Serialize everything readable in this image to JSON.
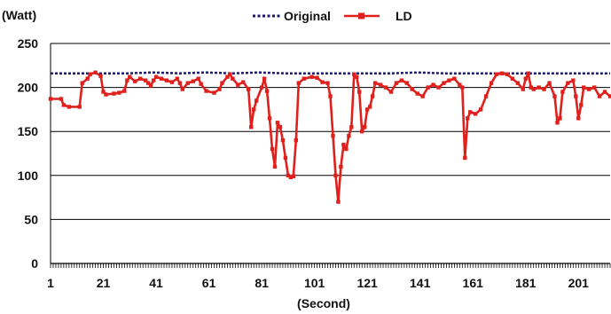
{
  "chart_data": {
    "type": "line",
    "ylabel": "(Watt)",
    "xlabel": "(Second)",
    "ylim": [
      0,
      250
    ],
    "yticks": [
      0,
      50,
      100,
      150,
      200,
      250
    ],
    "xticks": [
      1,
      21,
      41,
      61,
      81,
      101,
      121,
      141,
      161,
      181,
      201
    ],
    "xlim": [
      1,
      213
    ],
    "grid": "horizontal",
    "legend": "top-center",
    "series": [
      {
        "name": "Original",
        "color": "#1a1a6e",
        "style": "dotted-with-markers",
        "points": [
          [
            1,
            216
          ],
          [
            10,
            216
          ],
          [
            20,
            216
          ],
          [
            30,
            216
          ],
          [
            40,
            217
          ],
          [
            50,
            216
          ],
          [
            60,
            217
          ],
          [
            70,
            216
          ],
          [
            80,
            217
          ],
          [
            90,
            216
          ],
          [
            100,
            216
          ],
          [
            110,
            216
          ],
          [
            120,
            216
          ],
          [
            130,
            216
          ],
          [
            140,
            217
          ],
          [
            150,
            216
          ],
          [
            160,
            216
          ],
          [
            170,
            216
          ],
          [
            180,
            216
          ],
          [
            190,
            216
          ],
          [
            200,
            216
          ],
          [
            213,
            216
          ]
        ]
      },
      {
        "name": "LD",
        "color": "#e0201c",
        "style": "solid-with-markers",
        "points": [
          [
            1,
            187
          ],
          [
            5,
            187
          ],
          [
            6,
            180
          ],
          [
            8,
            178
          ],
          [
            12,
            178
          ],
          [
            13,
            205
          ],
          [
            15,
            210
          ],
          [
            16,
            215
          ],
          [
            18,
            217
          ],
          [
            20,
            213
          ],
          [
            21,
            195
          ],
          [
            22,
            192
          ],
          [
            25,
            193
          ],
          [
            27,
            194
          ],
          [
            29,
            196
          ],
          [
            30,
            208
          ],
          [
            31,
            212
          ],
          [
            33,
            207
          ],
          [
            35,
            210
          ],
          [
            37,
            208
          ],
          [
            38,
            205
          ],
          [
            39,
            202
          ],
          [
            40,
            208
          ],
          [
            41,
            212
          ],
          [
            43,
            210
          ],
          [
            45,
            208
          ],
          [
            47,
            206
          ],
          [
            49,
            210
          ],
          [
            50,
            205
          ],
          [
            51,
            198
          ],
          [
            53,
            205
          ],
          [
            55,
            207
          ],
          [
            57,
            210
          ],
          [
            58,
            204
          ],
          [
            60,
            196
          ],
          [
            63,
            194
          ],
          [
            65,
            198
          ],
          [
            66,
            205
          ],
          [
            68,
            212
          ],
          [
            69,
            215
          ],
          [
            70,
            210
          ],
          [
            72,
            203
          ],
          [
            74,
            206
          ],
          [
            76,
            198
          ],
          [
            77,
            155
          ],
          [
            78,
            175
          ],
          [
            79,
            185
          ],
          [
            81,
            200
          ],
          [
            82,
            210
          ],
          [
            83,
            196
          ],
          [
            84,
            165
          ],
          [
            85,
            130
          ],
          [
            86,
            110
          ],
          [
            87,
            160
          ],
          [
            88,
            155
          ],
          [
            89,
            140
          ],
          [
            90,
            120
          ],
          [
            91,
            100
          ],
          [
            92,
            98
          ],
          [
            93,
            99
          ],
          [
            94,
            140
          ],
          [
            95,
            205
          ],
          [
            97,
            210
          ],
          [
            100,
            212
          ],
          [
            102,
            211
          ],
          [
            104,
            206
          ],
          [
            106,
            205
          ],
          [
            107,
            190
          ],
          [
            108,
            145
          ],
          [
            109,
            100
          ],
          [
            110,
            70
          ],
          [
            111,
            110
          ],
          [
            112,
            135
          ],
          [
            113,
            130
          ],
          [
            114,
            145
          ],
          [
            115,
            155
          ],
          [
            116,
            215
          ],
          [
            117,
            212
          ],
          [
            118,
            195
          ],
          [
            119,
            150
          ],
          [
            120,
            155
          ],
          [
            121,
            175
          ],
          [
            122,
            178
          ],
          [
            123,
            190
          ],
          [
            124,
            205
          ],
          [
            126,
            203
          ],
          [
            128,
            200
          ],
          [
            130,
            195
          ],
          [
            132,
            205
          ],
          [
            134,
            208
          ],
          [
            136,
            205
          ],
          [
            138,
            198
          ],
          [
            140,
            193
          ],
          [
            142,
            190
          ],
          [
            144,
            200
          ],
          [
            146,
            203
          ],
          [
            148,
            200
          ],
          [
            150,
            205
          ],
          [
            152,
            208
          ],
          [
            154,
            210
          ],
          [
            156,
            203
          ],
          [
            157,
            200
          ],
          [
            158,
            120
          ],
          [
            159,
            165
          ],
          [
            160,
            172
          ],
          [
            162,
            170
          ],
          [
            164,
            175
          ],
          [
            166,
            190
          ],
          [
            168,
            205
          ],
          [
            170,
            215
          ],
          [
            172,
            216
          ],
          [
            174,
            215
          ],
          [
            176,
            210
          ],
          [
            178,
            205
          ],
          [
            180,
            198
          ],
          [
            181,
            210
          ],
          [
            182,
            216
          ],
          [
            183,
            200
          ],
          [
            184,
            198
          ],
          [
            186,
            200
          ],
          [
            188,
            198
          ],
          [
            190,
            205
          ],
          [
            192,
            190
          ],
          [
            193,
            160
          ],
          [
            194,
            165
          ],
          [
            195,
            195
          ],
          [
            197,
            205
          ],
          [
            199,
            208
          ],
          [
            200,
            190
          ],
          [
            201,
            165
          ],
          [
            202,
            180
          ],
          [
            203,
            200
          ],
          [
            205,
            198
          ],
          [
            207,
            200
          ],
          [
            209,
            190
          ],
          [
            211,
            195
          ],
          [
            213,
            190
          ]
        ]
      }
    ]
  }
}
